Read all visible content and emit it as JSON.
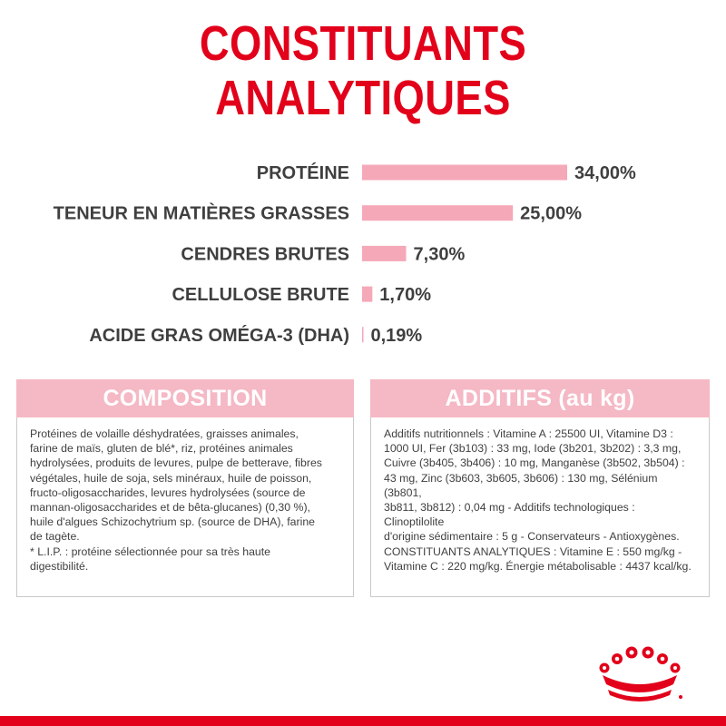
{
  "title": "CONSTITUANTS ANALYTIQUES",
  "colors": {
    "accent": "#e2001a",
    "bar": "#f5a8b8",
    "panel_header": "#f5b8c5"
  },
  "chart_data": {
    "type": "bar",
    "orientation": "horizontal",
    "categories": [
      "PROTÉINE",
      "TENEUR EN MATIÈRES GRASSES",
      "CENDRES BRUTES",
      "CELLULOSE BRUTE",
      "ACIDE GRAS OMÉGA-3 (DHA)"
    ],
    "values": [
      34.0,
      25.0,
      7.3,
      1.7,
      0.19
    ],
    "value_labels": [
      "34,00%",
      "25,00%",
      "7,30%",
      "1,70%",
      "0,19%"
    ],
    "unit": "%",
    "xlim": [
      0,
      34
    ],
    "grid": false
  },
  "composition": {
    "heading": "COMPOSITION",
    "text": "Protéines de volaille déshydratées, graisses animales,\nfarine de maïs, gluten de blé*, riz, protéines animales\nhydrolysées, produits de levures, pulpe de betterave, fibres\nvégétales, huile de soja, sels minéraux, huile de poisson,\nfructo-oligosaccharides, levures hydrolysées (source de\nmannan-oligosaccharides et de bêta-glucanes) (0,30 %),\nhuile d'algues Schizochytrium sp. (source de DHA), farine\nde tagète.\n* L.I.P. : protéine sélectionnée pour sa très haute\ndigestibilité."
  },
  "additifs": {
    "heading": "ADDITIFS (au kg)",
    "text": "Additifs nutritionnels : Vitamine A : 25500 UI, Vitamine D3 :\n1000 UI, Fer (3b103) : 33 mg, Iode (3b201, 3b202) : 3,3 mg,\nCuivre (3b405, 3b406) : 10 mg, Manganèse (3b502, 3b504) :\n43 mg, Zinc (3b603, 3b605, 3b606) : 130 mg, Sélénium (3b801,\n3b811, 3b812) : 0,04 mg - Additifs technologiques : Clinoptilolite\nd'origine sédimentaire : 5 g - Conservateurs - Antioxygènes.\nCONSTITUANTS ANALYTIQUES : Vitamine E : 550 mg/kg -\nVitamine C : 220 mg/kg. Énergie métabolisable : 4437 kcal/kg."
  },
  "logo": {
    "icon": "royal-canin-crown-icon"
  }
}
